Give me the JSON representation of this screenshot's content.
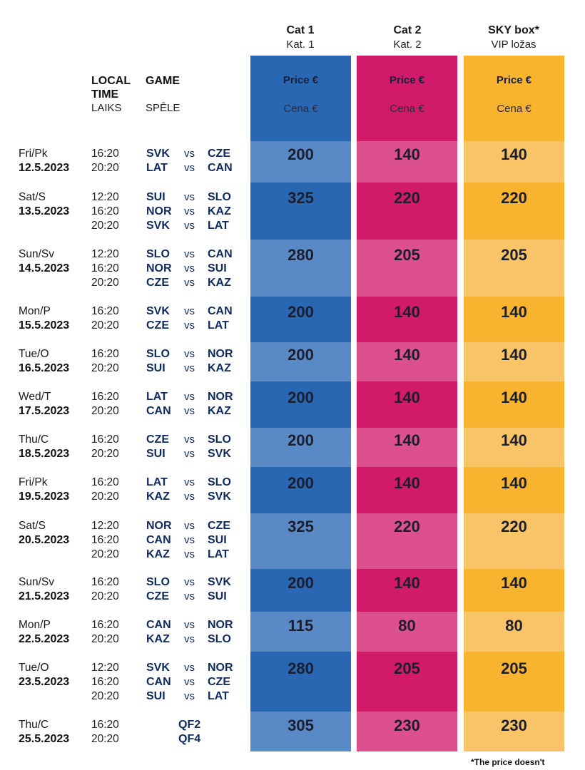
{
  "categories": [
    {
      "title": "Cat 1",
      "subtitle": "Kat. 1",
      "price_label": "Price €",
      "price_label_lv": "Cena €",
      "color": "#2a67b3",
      "alt_color": "#5a8ac5"
    },
    {
      "title": "Cat 2",
      "subtitle": "Kat. 2",
      "price_label": "Price €",
      "price_label_lv": "Cena €",
      "color": "#d21a6a",
      "alt_color": "#dc508e"
    },
    {
      "title": "SKY box*",
      "subtitle": "VIP ložas",
      "price_label": "Price €",
      "price_label_lv": "Cena €",
      "color": "#f8b42f",
      "alt_color": "#f9c467"
    }
  ],
  "headers": {
    "time_en_1": "LOCAL",
    "time_en_2": "TIME",
    "time_lv": "LAIKS",
    "game_en": "GAME",
    "game_lv": "SPĒLE"
  },
  "vs_label": "vs",
  "footnote": "*The price doesn't",
  "schedule": [
    {
      "day": "Fri/Pk",
      "date": "12.5.2023",
      "games": [
        {
          "time": "16:20",
          "home": "SVK",
          "away": "CZE"
        },
        {
          "time": "20:20",
          "home": "LAT",
          "away": "CAN"
        }
      ],
      "prices": [
        "200",
        "140",
        "140"
      ]
    },
    {
      "day": "Sat/S",
      "date": "13.5.2023",
      "games": [
        {
          "time": "12:20",
          "home": "SUI",
          "away": "SLO"
        },
        {
          "time": "16:20",
          "home": "NOR",
          "away": "KAZ"
        },
        {
          "time": "20:20",
          "home": "SVK",
          "away": "LAT"
        }
      ],
      "prices": [
        "325",
        "220",
        "220"
      ]
    },
    {
      "day": "Sun/Sv",
      "date": "14.5.2023",
      "games": [
        {
          "time": "12:20",
          "home": "SLO",
          "away": "CAN"
        },
        {
          "time": "16:20",
          "home": "NOR",
          "away": "SUI"
        },
        {
          "time": "20:20",
          "home": "CZE",
          "away": "KAZ"
        }
      ],
      "prices": [
        "280",
        "205",
        "205"
      ]
    },
    {
      "day": "Mon/P",
      "date": "15.5.2023",
      "games": [
        {
          "time": "16:20",
          "home": "SVK",
          "away": "CAN"
        },
        {
          "time": "20:20",
          "home": "CZE",
          "away": "LAT"
        }
      ],
      "prices": [
        "200",
        "140",
        "140"
      ]
    },
    {
      "day": "Tue/O",
      "date": "16.5.2023",
      "games": [
        {
          "time": "16:20",
          "home": "SLO",
          "away": "NOR"
        },
        {
          "time": "20:20",
          "home": "SUI",
          "away": "KAZ"
        }
      ],
      "prices": [
        "200",
        "140",
        "140"
      ]
    },
    {
      "day": "Wed/T",
      "date": "17.5.2023",
      "games": [
        {
          "time": "16:20",
          "home": "LAT",
          "away": "NOR"
        },
        {
          "time": "20:20",
          "home": "CAN",
          "away": "KAZ"
        }
      ],
      "prices": [
        "200",
        "140",
        "140"
      ]
    },
    {
      "day": "Thu/C",
      "date": "18.5.2023",
      "games": [
        {
          "time": "16:20",
          "home": "CZE",
          "away": "SLO"
        },
        {
          "time": "20:20",
          "home": "SUI",
          "away": "SVK"
        }
      ],
      "prices": [
        "200",
        "140",
        "140"
      ]
    },
    {
      "day": "Fri/Pk",
      "date": "19.5.2023",
      "games": [
        {
          "time": "16:20",
          "home": "LAT",
          "away": "SLO"
        },
        {
          "time": "20:20",
          "home": "KAZ",
          "away": "SVK"
        }
      ],
      "prices": [
        "200",
        "140",
        "140"
      ]
    },
    {
      "day": "Sat/S",
      "date": "20.5.2023",
      "games": [
        {
          "time": "12:20",
          "home": "NOR",
          "away": "CZE"
        },
        {
          "time": "16:20",
          "home": "CAN",
          "away": "SUI"
        },
        {
          "time": "20:20",
          "home": "KAZ",
          "away": "LAT"
        }
      ],
      "prices": [
        "325",
        "220",
        "220"
      ]
    },
    {
      "day": "Sun/Sv",
      "date": "21.5.2023",
      "games": [
        {
          "time": "16:20",
          "home": "SLO",
          "away": "SVK"
        },
        {
          "time": "20:20",
          "home": "CZE",
          "away": "SUI"
        }
      ],
      "prices": [
        "200",
        "140",
        "140"
      ]
    },
    {
      "day": "Mon/P",
      "date": "22.5.2023",
      "games": [
        {
          "time": "16:20",
          "home": "CAN",
          "away": "NOR"
        },
        {
          "time": "20:20",
          "home": "KAZ",
          "away": "SLO"
        }
      ],
      "prices": [
        "115",
        "80",
        "80"
      ]
    },
    {
      "day": "Tue/O",
      "date": "23.5.2023",
      "games": [
        {
          "time": "12:20",
          "home": "SVK",
          "away": "NOR"
        },
        {
          "time": "16:20",
          "home": "CAN",
          "away": "CZE"
        },
        {
          "time": "20:20",
          "home": "SUI",
          "away": "LAT"
        }
      ],
      "prices": [
        "280",
        "205",
        "205"
      ]
    },
    {
      "day": "Thu/C",
      "date": "25.5.2023",
      "games": [
        {
          "time": "16:20",
          "label": "QF2"
        },
        {
          "time": "20:20",
          "label": "QF4"
        }
      ],
      "prices": [
        "305",
        "230",
        "230"
      ]
    }
  ]
}
